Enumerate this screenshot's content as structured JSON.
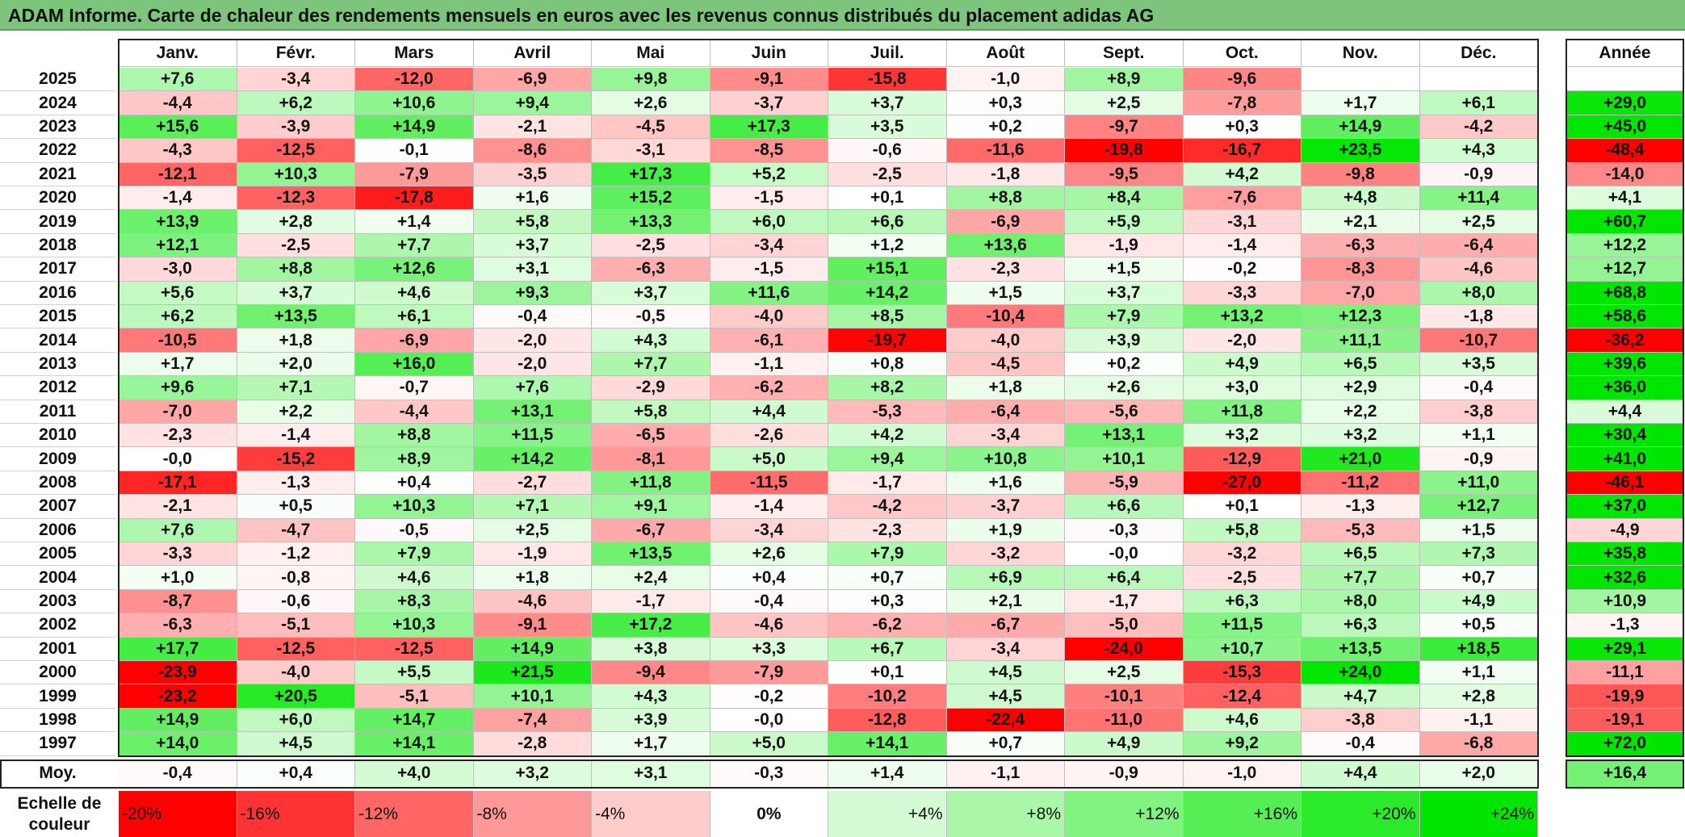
{
  "title": "ADAM Informe. Carte de chaleur des rendements mensuels en euros avec les revenus connus distribués du placement adidas AG",
  "months": [
    "Janv.",
    "Févr.",
    "Mars",
    "Avril",
    "Mai",
    "Juin",
    "Juil.",
    "Août",
    "Sept.",
    "Oct.",
    "Nov.",
    "Déc."
  ],
  "annual_header": "Année",
  "average_label": "Moy.",
  "legend_label_line1": "Echelle de",
  "legend_label_line2": "couleur",
  "colors": {
    "neg_max": "#ff0000",
    "zero": "#ffffff",
    "pos_max": "#00e600",
    "title_bg": "#7dc47d"
  },
  "chart_data": {
    "type": "heatmap",
    "title": "ADAM Informe. Carte de chaleur des rendements mensuels en euros avec les revenus connus distribués du placement adidas AG",
    "columns": [
      "Janv.",
      "Févr.",
      "Mars",
      "Avril",
      "Mai",
      "Juin",
      "Juil.",
      "Août",
      "Sept.",
      "Oct.",
      "Nov.",
      "Déc."
    ],
    "rows": [
      {
        "year": "2025",
        "values": [
          "+7,6",
          "-3,4",
          "-12,0",
          "-6,9",
          "+9,8",
          "-9,1",
          "-15,8",
          "-1,0",
          "+8,9",
          "-9,6",
          "",
          ""
        ],
        "annual": ""
      },
      {
        "year": "2024",
        "values": [
          "-4,4",
          "+6,2",
          "+10,6",
          "+9,4",
          "+2,6",
          "-3,7",
          "+3,7",
          "+0,3",
          "+2,5",
          "-7,8",
          "+1,7",
          "+6,1"
        ],
        "annual": "+29,0"
      },
      {
        "year": "2023",
        "values": [
          "+15,6",
          "-3,9",
          "+14,9",
          "-2,1",
          "-4,5",
          "+17,3",
          "+3,5",
          "+0,2",
          "-9,7",
          "+0,3",
          "+14,9",
          "-4,2"
        ],
        "annual": "+45,0"
      },
      {
        "year": "2022",
        "values": [
          "-4,3",
          "-12,5",
          "-0,1",
          "-8,6",
          "-3,1",
          "-8,5",
          "-0,6",
          "-11,6",
          "-19,8",
          "-16,7",
          "+23,5",
          "+4,3"
        ],
        "annual": "-48,4"
      },
      {
        "year": "2021",
        "values": [
          "-12,1",
          "+10,3",
          "-7,9",
          "-3,5",
          "+17,3",
          "+5,2",
          "-2,5",
          "-1,8",
          "-9,5",
          "+4,2",
          "-9,8",
          "-0,9"
        ],
        "annual": "-14,0"
      },
      {
        "year": "2020",
        "values": [
          "-1,4",
          "-12,3",
          "-17,8",
          "+1,6",
          "+15,2",
          "-1,5",
          "+0,1",
          "+8,8",
          "+8,4",
          "-7,6",
          "+4,8",
          "+11,4"
        ],
        "annual": "+4,1"
      },
      {
        "year": "2019",
        "values": [
          "+13,9",
          "+2,8",
          "+1,4",
          "+5,8",
          "+13,3",
          "+6,0",
          "+6,6",
          "-6,9",
          "+5,9",
          "-3,1",
          "+2,1",
          "+2,5"
        ],
        "annual": "+60,7"
      },
      {
        "year": "2018",
        "values": [
          "+12,1",
          "-2,5",
          "+7,7",
          "+3,7",
          "-2,5",
          "-3,4",
          "+1,2",
          "+13,6",
          "-1,9",
          "-1,4",
          "-6,3",
          "-6,4"
        ],
        "annual": "+12,2"
      },
      {
        "year": "2017",
        "values": [
          "-3,0",
          "+8,8",
          "+12,6",
          "+3,1",
          "-6,3",
          "-1,5",
          "+15,1",
          "-2,3",
          "+1,5",
          "-0,2",
          "-8,3",
          "-4,6"
        ],
        "annual": "+12,7"
      },
      {
        "year": "2016",
        "values": [
          "+5,6",
          "+3,7",
          "+4,6",
          "+9,3",
          "+3,7",
          "+11,6",
          "+14,2",
          "+1,5",
          "+3,7",
          "-3,3",
          "-7,0",
          "+8,0"
        ],
        "annual": "+68,8"
      },
      {
        "year": "2015",
        "values": [
          "+6,2",
          "+13,5",
          "+6,1",
          "-0,4",
          "-0,5",
          "-4,0",
          "+8,5",
          "-10,4",
          "+7,9",
          "+13,2",
          "+12,3",
          "-1,8"
        ],
        "annual": "+58,6"
      },
      {
        "year": "2014",
        "values": [
          "-10,5",
          "+1,8",
          "-6,9",
          "-2,0",
          "+4,3",
          "-6,1",
          "-19,7",
          "-4,0",
          "+3,9",
          "-2,0",
          "+11,1",
          "-10,7"
        ],
        "annual": "-36,2"
      },
      {
        "year": "2013",
        "values": [
          "+1,7",
          "+2,0",
          "+16,0",
          "-2,0",
          "+7,7",
          "-1,1",
          "+0,8",
          "-4,5",
          "+0,2",
          "+4,9",
          "+6,5",
          "+3,5"
        ],
        "annual": "+39,6"
      },
      {
        "year": "2012",
        "values": [
          "+9,6",
          "+7,1",
          "-0,7",
          "+7,6",
          "-2,9",
          "-6,2",
          "+8,2",
          "+1,8",
          "+2,6",
          "+3,0",
          "+2,9",
          "-0,4"
        ],
        "annual": "+36,0"
      },
      {
        "year": "2011",
        "values": [
          "-7,0",
          "+2,2",
          "-4,4",
          "+13,1",
          "+5,8",
          "+4,4",
          "-5,3",
          "-6,4",
          "-5,6",
          "+11,8",
          "+2,2",
          "-3,8"
        ],
        "annual": "+4,4"
      },
      {
        "year": "2010",
        "values": [
          "-2,3",
          "-1,4",
          "+8,8",
          "+11,5",
          "-6,5",
          "-2,6",
          "+4,2",
          "-3,4",
          "+13,1",
          "+3,2",
          "+3,2",
          "+1,1"
        ],
        "annual": "+30,4"
      },
      {
        "year": "2009",
        "values": [
          "-0,0",
          "-15,2",
          "+8,9",
          "+14,2",
          "-8,1",
          "+5,0",
          "+9,4",
          "+10,8",
          "+10,1",
          "-12,9",
          "+21,0",
          "-0,9"
        ],
        "annual": "+41,0"
      },
      {
        "year": "2008",
        "values": [
          "-17,1",
          "-1,3",
          "+0,4",
          "-2,7",
          "+11,8",
          "-11,5",
          "-1,7",
          "+1,6",
          "-5,9",
          "-27,0",
          "-11,2",
          "+11,0"
        ],
        "annual": "-46,1"
      },
      {
        "year": "2007",
        "values": [
          "-2,1",
          "+0,5",
          "+10,3",
          "+7,1",
          "+9,1",
          "-1,4",
          "-4,2",
          "-3,7",
          "+6,6",
          "+0,1",
          "-1,3",
          "+12,7"
        ],
        "annual": "+37,0"
      },
      {
        "year": "2006",
        "values": [
          "+7,6",
          "-4,7",
          "-0,5",
          "+2,5",
          "-6,7",
          "-3,4",
          "-2,3",
          "+1,9",
          "-0,3",
          "+5,8",
          "-5,3",
          "+1,5"
        ],
        "annual": "-4,9"
      },
      {
        "year": "2005",
        "values": [
          "-3,3",
          "-1,2",
          "+7,9",
          "-1,9",
          "+13,5",
          "+2,6",
          "+7,9",
          "-3,2",
          "-0,0",
          "-3,2",
          "+6,5",
          "+7,3"
        ],
        "annual": "+35,8"
      },
      {
        "year": "2004",
        "values": [
          "+1,0",
          "-0,8",
          "+4,6",
          "+1,8",
          "+2,4",
          "+0,4",
          "+0,7",
          "+6,9",
          "+6,4",
          "-2,5",
          "+7,7",
          "+0,7"
        ],
        "annual": "+32,6"
      },
      {
        "year": "2003",
        "values": [
          "-8,7",
          "-0,6",
          "+8,3",
          "-4,6",
          "-1,7",
          "-0,4",
          "+0,3",
          "+2,1",
          "-1,7",
          "+6,3",
          "+8,0",
          "+4,9"
        ],
        "annual": "+10,9"
      },
      {
        "year": "2002",
        "values": [
          "-6,3",
          "-5,1",
          "+10,3",
          "-9,1",
          "+17,2",
          "-4,6",
          "-6,2",
          "-6,7",
          "-5,0",
          "+11,5",
          "+6,3",
          "+0,5"
        ],
        "annual": "-1,3"
      },
      {
        "year": "2001",
        "values": [
          "+17,7",
          "-12,5",
          "-12,5",
          "+14,9",
          "+3,8",
          "+3,3",
          "+6,7",
          "-3,4",
          "-24,0",
          "+10,7",
          "+13,5",
          "+18,5"
        ],
        "annual": "+29,1"
      },
      {
        "year": "2000",
        "values": [
          "-23,9",
          "-4,0",
          "+5,5",
          "+21,5",
          "-9,4",
          "-7,9",
          "+0,1",
          "+4,5",
          "+2,5",
          "-15,3",
          "+24,0",
          "+1,1"
        ],
        "annual": "-11,1"
      },
      {
        "year": "1999",
        "values": [
          "-23,2",
          "+20,5",
          "-5,1",
          "+10,1",
          "+4,3",
          "-0,2",
          "-10,2",
          "+4,5",
          "-10,1",
          "-12,4",
          "+4,7",
          "+2,8"
        ],
        "annual": "-19,9"
      },
      {
        "year": "1998",
        "values": [
          "+14,9",
          "+6,0",
          "+14,7",
          "-7,4",
          "+3,9",
          "-0,0",
          "-12,8",
          "-22,4",
          "-11,0",
          "+4,6",
          "-3,8",
          "-1,1"
        ],
        "annual": "-19,1"
      },
      {
        "year": "1997",
        "values": [
          "+14,0",
          "+4,5",
          "+14,1",
          "-2,8",
          "+1,7",
          "+5,0",
          "+14,1",
          "+0,7",
          "+4,9",
          "+9,2",
          "-0,4",
          "-6,8"
        ],
        "annual": "+72,0"
      }
    ],
    "average": {
      "values": [
        "-0,4",
        "+0,4",
        "+4,0",
        "+3,2",
        "+3,1",
        "-0,3",
        "+1,4",
        "-1,1",
        "-0,9",
        "-1,0",
        "+4,4",
        "+2,0"
      ],
      "annual": "+16,4"
    },
    "color_scale": [
      "-20%",
      "-16%",
      "-12%",
      "-8%",
      "-4%",
      "0%",
      "+4%",
      "+8%",
      "+12%",
      "+16%",
      "+20%",
      "+24%"
    ],
    "color_scale_values": [
      -20,
      -16,
      -12,
      -8,
      -4,
      0,
      4,
      8,
      12,
      16,
      20,
      24
    ]
  }
}
